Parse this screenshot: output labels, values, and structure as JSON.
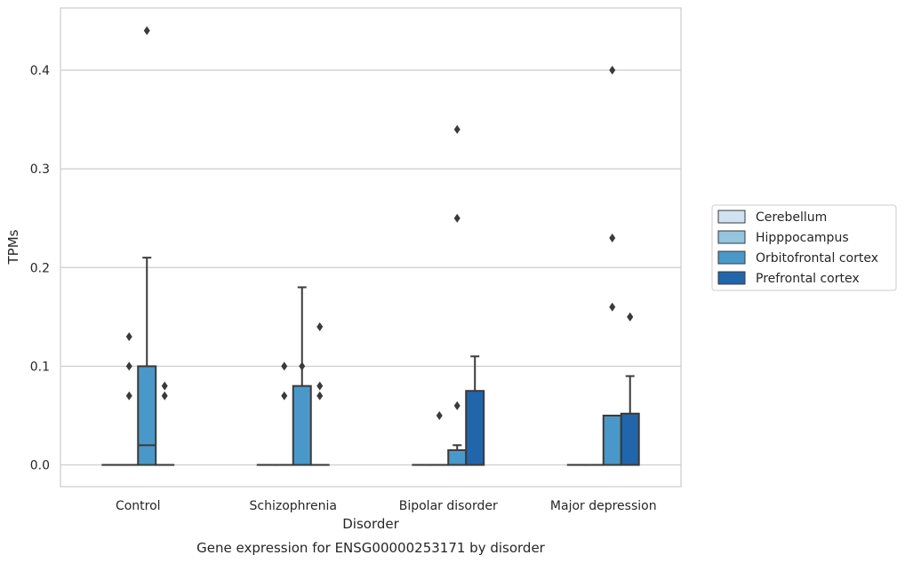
{
  "chart_data": {
    "type": "box",
    "title": "",
    "caption": "Gene expression for ENSG00000253171 by disorder",
    "xlabel": "Disorder",
    "ylabel": "TPMs",
    "categories": [
      "Control",
      "Schizophrenia",
      "Bipolar disorder",
      "Major depression"
    ],
    "ylim": [
      -0.022,
      0.463
    ],
    "yticks": [
      0.0,
      0.1,
      0.2,
      0.3,
      0.4
    ],
    "ytick_labels": [
      "0.0",
      "0.1",
      "0.2",
      "0.3",
      "0.4"
    ],
    "grid": "horizontal",
    "legend_position": "right",
    "series": [
      {
        "name": "Cerebellum",
        "color": "#d0e1f2",
        "boxes": [
          {
            "category": "Control",
            "q1": 0,
            "median": 0,
            "q3": 0,
            "whisker_low": 0,
            "whisker_high": 0,
            "outliers": []
          },
          {
            "category": "Schizophrenia",
            "q1": 0,
            "median": 0,
            "q3": 0,
            "whisker_low": 0,
            "whisker_high": 0,
            "outliers": []
          },
          {
            "category": "Bipolar disorder",
            "q1": 0,
            "median": 0,
            "q3": 0,
            "whisker_low": 0,
            "whisker_high": 0,
            "outliers": []
          },
          {
            "category": "Major depression",
            "q1": 0,
            "median": 0,
            "q3": 0,
            "whisker_low": 0,
            "whisker_high": 0,
            "outliers": []
          }
        ]
      },
      {
        "name": "Hipppocampus",
        "color": "#94c4df",
        "boxes": [
          {
            "category": "Control",
            "q1": 0,
            "median": 0,
            "q3": 0,
            "whisker_low": 0,
            "whisker_high": 0,
            "outliers": [
              0.07,
              0.1,
              0.13
            ]
          },
          {
            "category": "Schizophrenia",
            "q1": 0,
            "median": 0,
            "q3": 0,
            "whisker_low": 0,
            "whisker_high": 0,
            "outliers": [
              0.07,
              0.1
            ]
          },
          {
            "category": "Bipolar disorder",
            "q1": 0,
            "median": 0,
            "q3": 0,
            "whisker_low": 0,
            "whisker_high": 0,
            "outliers": [
              0.05
            ]
          },
          {
            "category": "Major depression",
            "q1": 0,
            "median": 0,
            "q3": 0,
            "whisker_low": 0,
            "whisker_high": 0,
            "outliers": []
          }
        ]
      },
      {
        "name": "Orbitofrontal cortex",
        "color": "#4a98c9",
        "boxes": [
          {
            "category": "Control",
            "q1": 0,
            "median": 0.02,
            "q3": 0.1,
            "whisker_low": 0,
            "whisker_high": 0.21,
            "outliers": [
              0.44
            ]
          },
          {
            "category": "Schizophrenia",
            "q1": 0,
            "median": 0,
            "q3": 0.08,
            "whisker_low": 0,
            "whisker_high": 0.18,
            "outliers": [
              0.1
            ]
          },
          {
            "category": "Bipolar disorder",
            "q1": 0,
            "median": 0,
            "q3": 0.015,
            "whisker_low": 0,
            "whisker_high": 0.02,
            "outliers": [
              0.06,
              0.25,
              0.34
            ]
          },
          {
            "category": "Major depression",
            "q1": 0,
            "median": 0,
            "q3": 0.05,
            "whisker_low": 0,
            "whisker_high": 0.05,
            "outliers": [
              0.16,
              0.23,
              0.4
            ]
          }
        ]
      },
      {
        "name": "Prefrontal cortex",
        "color": "#2165ab",
        "boxes": [
          {
            "category": "Control",
            "q1": 0,
            "median": 0,
            "q3": 0,
            "whisker_low": 0,
            "whisker_high": 0,
            "outliers": [
              0.07,
              0.08
            ]
          },
          {
            "category": "Schizophrenia",
            "q1": 0,
            "median": 0,
            "q3": 0,
            "whisker_low": 0,
            "whisker_high": 0,
            "outliers": [
              0.07,
              0.08,
              0.14
            ]
          },
          {
            "category": "Bipolar disorder",
            "q1": 0,
            "median": 0,
            "q3": 0.075,
            "whisker_low": 0,
            "whisker_high": 0.11,
            "outliers": []
          },
          {
            "category": "Major depression",
            "q1": 0,
            "median": 0,
            "q3": 0.052,
            "whisker_low": 0,
            "whisker_high": 0.09,
            "outliers": [
              0.15,
              0.15
            ]
          }
        ]
      }
    ]
  }
}
